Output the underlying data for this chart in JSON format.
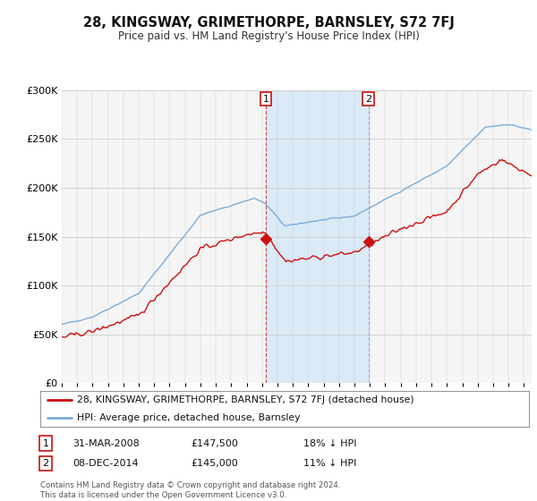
{
  "title": "28, KINGSWAY, GRIMETHORPE, BARNSLEY, S72 7FJ",
  "subtitle": "Price paid vs. HM Land Registry's House Price Index (HPI)",
  "bg_color": "#ffffff",
  "plot_bg_color": "#f5f5f5",
  "hpi_color": "#7aadda",
  "price_color": "#cc1111",
  "shade_color": "#daeaf7",
  "transaction1": {
    "date": "31-MAR-2008",
    "price": 147500,
    "label": "1",
    "pct": "18% ↓ HPI"
  },
  "transaction2": {
    "date": "08-DEC-2014",
    "price": 145000,
    "label": "2",
    "pct": "11% ↓ HPI"
  },
  "legend_line1": "28, KINGSWAY, GRIMETHORPE, BARNSLEY, S72 7FJ (detached house)",
  "legend_line2": "HPI: Average price, detached house, Barnsley",
  "footer": "Contains HM Land Registry data © Crown copyright and database right 2024.\nThis data is licensed under the Open Government Licence v3.0.",
  "ylim": [
    0,
    300000
  ],
  "yticks": [
    0,
    50000,
    100000,
    150000,
    200000,
    250000,
    300000
  ],
  "xlim_start": 1995,
  "xlim_end": 2025.5
}
